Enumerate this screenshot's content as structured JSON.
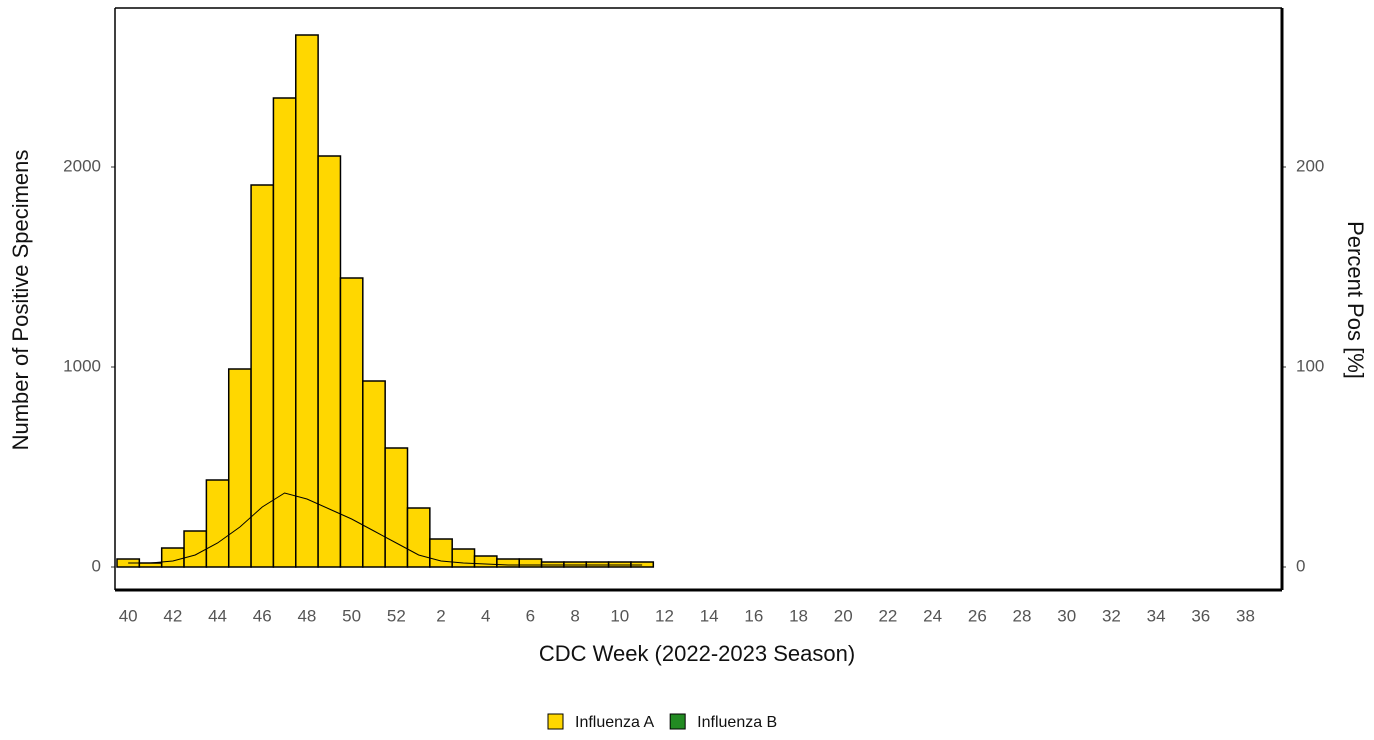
{
  "chart_data": {
    "type": "bar",
    "x_label": "CDC Week (2022-2023 Season)",
    "y_label": "Number of Positive Specimens",
    "y2_label": "Percent Pos [%]",
    "categories": [
      "40",
      null,
      "42",
      null,
      "44",
      null,
      "46",
      null,
      "48",
      null,
      "50",
      null,
      "52",
      null,
      "2",
      null,
      "4",
      null,
      "6",
      null,
      "8",
      null,
      "10",
      null,
      "12",
      null,
      "14",
      null,
      "16",
      null,
      "18",
      null,
      "20",
      null,
      "22",
      null,
      "24",
      null,
      "26",
      null,
      "28",
      null,
      "30",
      null,
      "32",
      null,
      "34",
      null,
      "36",
      null,
      "38",
      null
    ],
    "series": [
      {
        "name": "Influenza A",
        "color": "#ffd700",
        "values": [
          40,
          20,
          95,
          180,
          435,
          990,
          1910,
          2345,
          2660,
          2055,
          1445,
          930,
          595,
          295,
          140,
          90,
          55,
          40,
          40,
          25,
          25,
          25,
          25,
          25,
          null,
          null,
          null,
          null,
          null,
          null,
          null,
          null,
          null,
          null,
          null,
          null,
          null,
          null,
          null,
          null,
          null,
          null,
          null,
          null,
          null,
          null,
          null,
          null,
          null,
          null,
          null,
          null
        ]
      },
      {
        "name": "Influenza B",
        "color": "#228b22",
        "values": [
          0,
          0,
          0,
          0,
          0,
          0,
          0,
          0,
          0,
          0,
          0,
          0,
          0,
          0,
          0,
          0,
          0,
          0,
          0,
          0,
          0,
          0,
          0,
          0,
          null,
          null,
          null,
          null,
          null,
          null,
          null,
          null,
          null,
          null,
          null,
          null,
          null,
          null,
          null,
          null,
          null,
          null,
          null,
          null,
          null,
          null,
          null,
          null,
          null,
          null,
          null,
          null
        ]
      },
      {
        "name": "Percent Pos",
        "type": "line",
        "axis": "y2",
        "color": "#000000",
        "values": [
          2,
          2,
          3,
          6,
          12,
          20,
          30,
          37,
          34,
          29,
          24,
          18,
          12,
          6,
          3,
          2,
          1.5,
          1,
          1,
          1,
          1,
          1,
          1,
          1,
          null,
          null,
          null,
          null,
          null,
          null,
          null,
          null,
          null,
          null,
          null,
          null,
          null,
          null,
          null,
          null,
          null,
          null,
          null,
          null,
          null,
          null,
          null,
          null,
          null,
          null,
          null,
          null
        ]
      }
    ],
    "ylim": [
      -115,
      2795
    ],
    "yticks": [
      0,
      1000,
      2000
    ],
    "y2lim": [
      -11.5,
      279.5
    ],
    "y2ticks": [
      0,
      100,
      200
    ],
    "stacked": true,
    "legend": "bottom"
  }
}
